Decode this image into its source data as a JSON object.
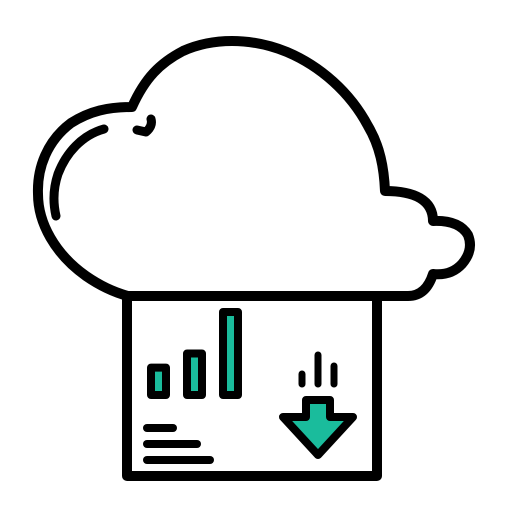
{
  "icon": {
    "name": "cloud-data-download-icon",
    "colors": {
      "stroke": "#000000",
      "fill": "#ffffff",
      "accent": "#1abc9c"
    },
    "bars": [
      {
        "name": "bar-short",
        "level": 0.33
      },
      {
        "name": "bar-medium",
        "level": 0.5
      },
      {
        "name": "bar-tall",
        "level": 1.0
      }
    ]
  }
}
